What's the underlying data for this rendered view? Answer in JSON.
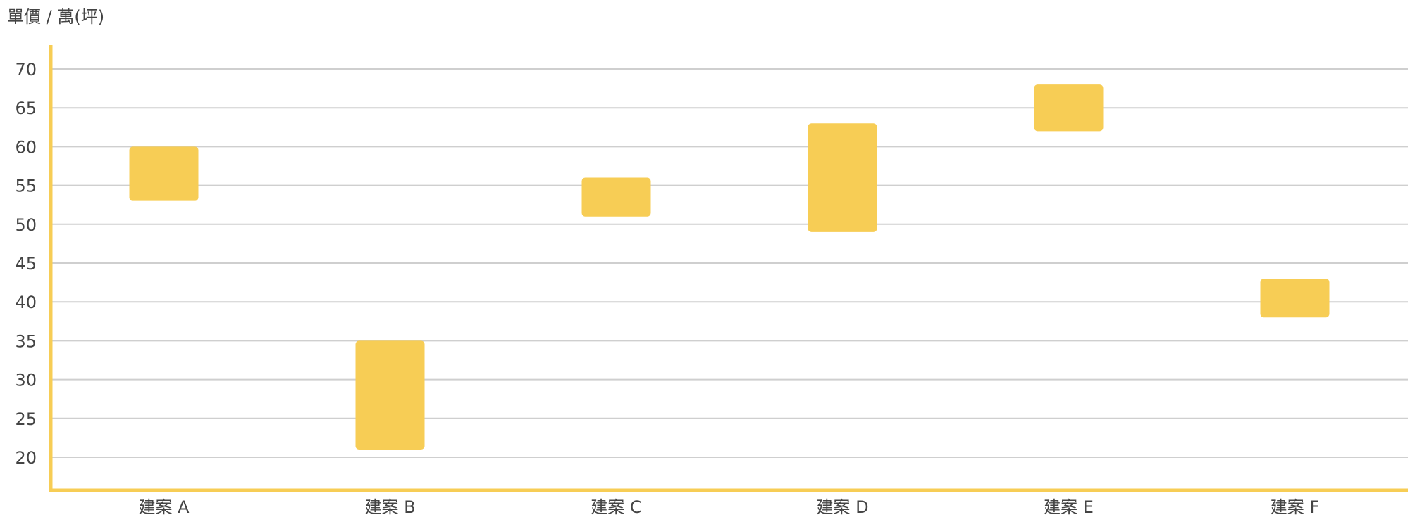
{
  "chart_data": {
    "type": "bar",
    "subtype": "floating-range",
    "ylabel": "單價 / 萬(坪)",
    "xlabel": "",
    "ylim": [
      16,
      73
    ],
    "y_ticks": [
      20,
      25,
      30,
      35,
      40,
      45,
      50,
      55,
      60,
      65,
      70
    ],
    "grid": true,
    "legend": "none",
    "categories": [
      "建案 A",
      "建案 B",
      "建案 C",
      "建案 D",
      "建案 E",
      "建案 F"
    ],
    "series": [
      {
        "ranges": [
          [
            53,
            60
          ],
          [
            21,
            35
          ],
          [
            51,
            56
          ],
          [
            49,
            63
          ],
          [
            62,
            68
          ],
          [
            38,
            43
          ]
        ]
      }
    ],
    "colors": {
      "bar": "#f7cd55",
      "axis": "#f7cd55",
      "grid": "#cfcfcf",
      "text": "#444444"
    }
  }
}
